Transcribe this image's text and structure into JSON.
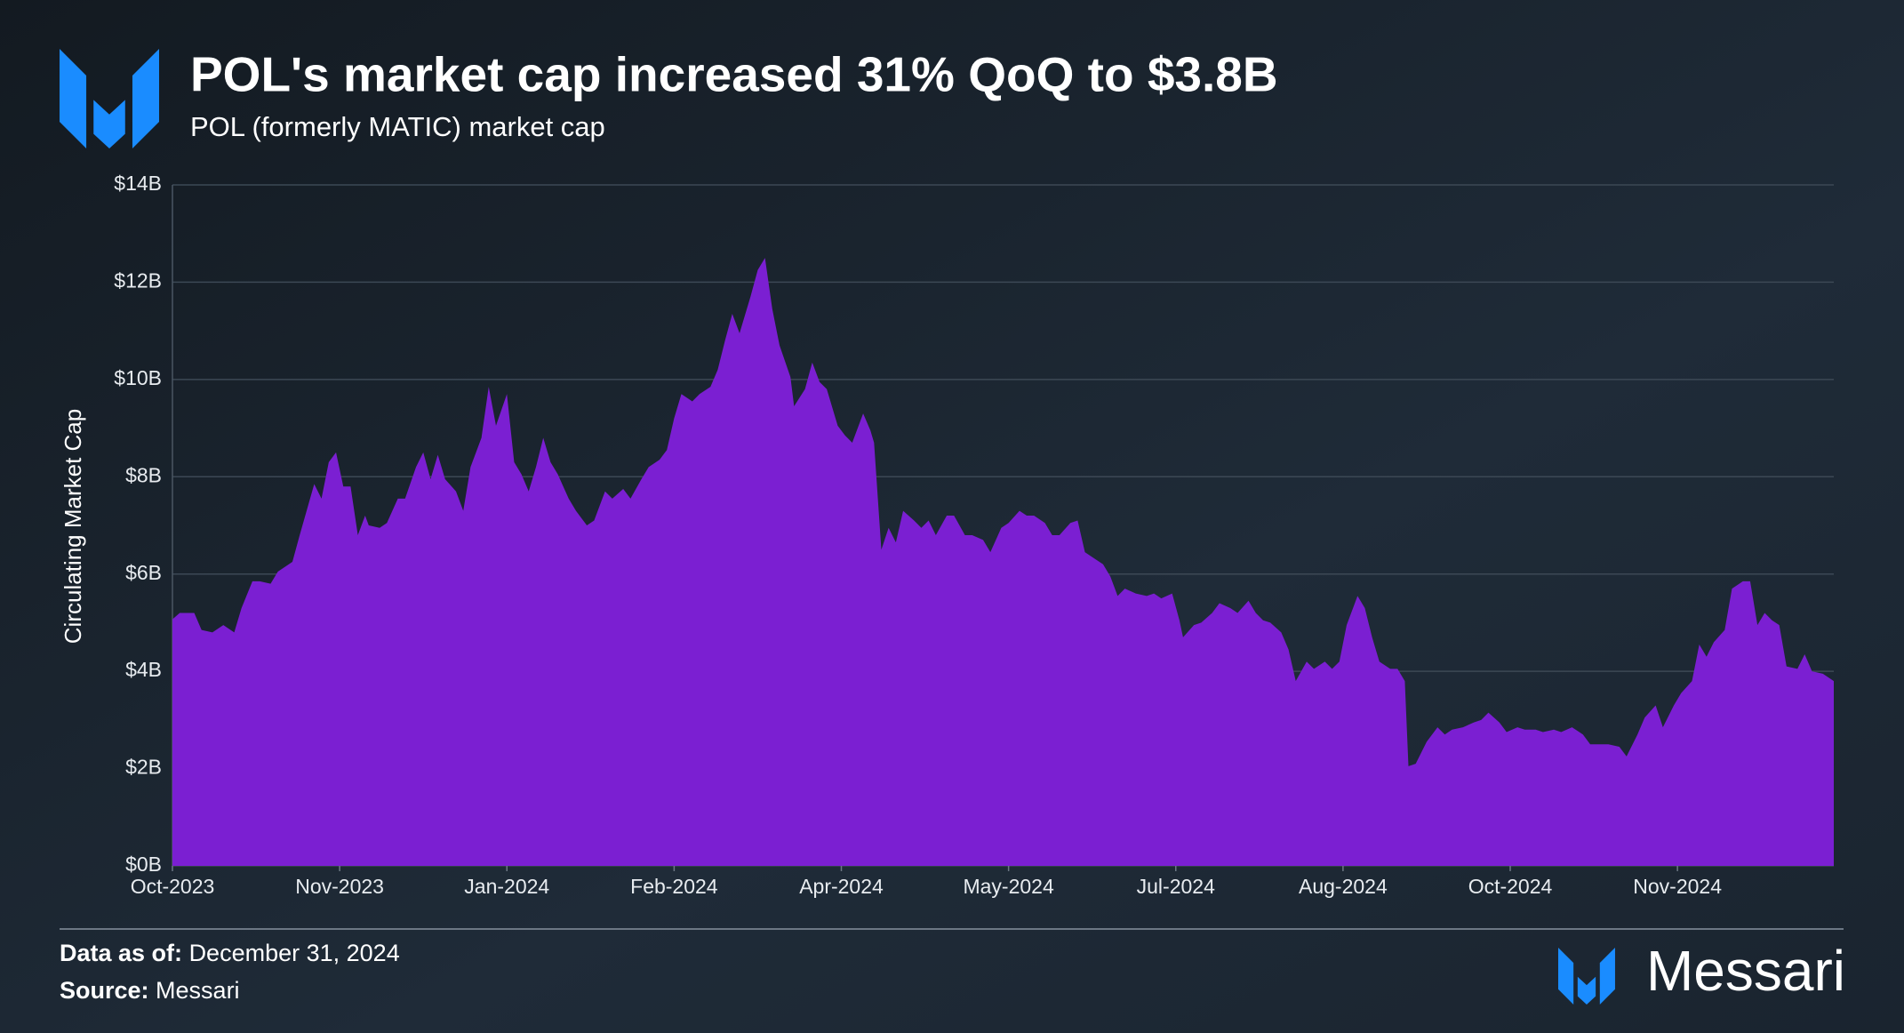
{
  "chart_data": {
    "type": "area",
    "title": "POL's market cap increased 31% QoQ to $3.8B",
    "subtitle": "POL (formerly MATIC) market cap",
    "y_label": "Circulating Market Cap",
    "color": "#7b1fd2",
    "grid": true,
    "xlim": [
      0,
      457
    ],
    "xticks": [
      {
        "value": 0,
        "label": "Oct-2023"
      },
      {
        "value": 46,
        "label": "Nov-2023"
      },
      {
        "value": 92,
        "label": "Jan-2024"
      },
      {
        "value": 138,
        "label": "Feb-2024"
      },
      {
        "value": 184,
        "label": "Apr-2024"
      },
      {
        "value": 230,
        "label": "May-2024"
      },
      {
        "value": 276,
        "label": "Jul-2024"
      },
      {
        "value": 322,
        "label": "Aug-2024"
      },
      {
        "value": 368,
        "label": "Oct-2024"
      },
      {
        "value": 414,
        "label": "Nov-2024"
      }
    ],
    "ylim": [
      0,
      14
    ],
    "yticks": [
      {
        "value": 0,
        "label": "$0B"
      },
      {
        "value": 2,
        "label": "$2B"
      },
      {
        "value": 4,
        "label": "$4B"
      },
      {
        "value": 6,
        "label": "$6B"
      },
      {
        "value": 8,
        "label": "$8B"
      },
      {
        "value": 10,
        "label": "$10B"
      },
      {
        "value": 12,
        "label": "$12B"
      },
      {
        "value": 14,
        "label": "$14B"
      }
    ],
    "x": [
      0,
      2,
      6,
      8,
      11,
      14,
      17,
      19,
      22,
      24,
      27,
      29,
      33,
      35,
      39,
      41,
      43,
      45,
      47,
      49,
      51,
      53,
      54,
      57,
      59,
      62,
      64,
      67,
      69,
      71,
      73,
      75,
      78,
      80,
      82,
      85,
      87,
      89,
      92,
      94,
      96,
      98,
      100,
      102,
      104,
      106,
      109,
      111,
      114,
      116,
      119,
      121,
      124,
      126,
      129,
      131,
      134,
      136,
      138,
      140,
      143,
      145,
      148,
      150,
      152,
      154,
      156,
      159,
      161,
      163,
      165,
      167,
      170,
      171,
      174,
      176,
      178,
      180,
      183,
      185,
      187,
      190,
      192,
      193,
      195,
      197,
      199,
      201,
      204,
      206,
      208,
      210,
      213,
      215,
      218,
      220,
      223,
      225,
      228,
      230,
      233,
      235,
      237,
      240,
      242,
      244,
      247,
      249,
      251,
      253,
      256,
      258,
      260,
      262,
      265,
      268,
      270,
      272,
      275,
      277,
      278,
      281,
      283,
      286,
      288,
      291,
      293,
      296,
      298,
      300,
      302,
      305,
      307,
      309,
      312,
      314,
      317,
      319,
      321,
      323,
      326,
      328,
      330,
      332,
      335,
      337,
      339,
      340,
      342,
      345,
      348,
      350,
      352,
      355,
      358,
      360,
      362,
      365,
      367,
      370,
      372,
      375,
      377,
      380,
      382,
      385,
      388,
      390,
      393,
      395,
      398,
      400,
      403,
      405,
      408,
      410,
      413,
      415,
      418,
      420,
      422,
      424,
      427,
      429,
      432,
      434,
      436,
      438,
      440,
      442,
      444,
      447,
      449,
      451,
      454,
      457
    ],
    "values": [
      5.07,
      5.2,
      5.2,
      4.85,
      4.8,
      4.95,
      4.8,
      5.3,
      5.85,
      5.85,
      5.8,
      6.05,
      6.25,
      6.8,
      7.85,
      7.55,
      8.3,
      8.5,
      7.8,
      7.8,
      6.8,
      7.2,
      7.0,
      6.95,
      7.05,
      7.55,
      7.55,
      8.2,
      8.5,
      7.95,
      8.45,
      7.95,
      7.7,
      7.3,
      8.2,
      8.8,
      9.85,
      9.05,
      9.7,
      8.3,
      8.05,
      7.7,
      8.2,
      8.8,
      8.3,
      8.05,
      7.55,
      7.3,
      7.0,
      7.1,
      7.7,
      7.55,
      7.75,
      7.55,
      7.95,
      8.2,
      8.35,
      8.55,
      9.2,
      9.7,
      9.55,
      9.7,
      9.85,
      10.2,
      10.8,
      11.35,
      10.95,
      11.7,
      12.25,
      12.5,
      11.45,
      10.7,
      10.05,
      9.45,
      9.8,
      10.35,
      9.95,
      9.8,
      9.05,
      8.85,
      8.7,
      9.3,
      8.95,
      8.7,
      6.5,
      6.95,
      6.65,
      7.3,
      7.1,
      6.95,
      7.1,
      6.8,
      7.2,
      7.2,
      6.8,
      6.8,
      6.7,
      6.45,
      6.95,
      7.05,
      7.3,
      7.2,
      7.2,
      7.05,
      6.8,
      6.8,
      7.05,
      7.1,
      6.45,
      6.35,
      6.2,
      5.95,
      5.55,
      5.7,
      5.6,
      5.55,
      5.6,
      5.5,
      5.6,
      5.05,
      4.7,
      4.95,
      5.0,
      5.2,
      5.4,
      5.3,
      5.2,
      5.45,
      5.2,
      5.05,
      5.0,
      4.8,
      4.45,
      3.8,
      4.2,
      4.05,
      4.2,
      4.05,
      4.2,
      4.95,
      5.55,
      5.3,
      4.7,
      4.2,
      4.05,
      4.05,
      3.8,
      2.05,
      2.1,
      2.55,
      2.85,
      2.7,
      2.8,
      2.85,
      2.95,
      3.0,
      3.15,
      2.95,
      2.75,
      2.85,
      2.8,
      2.8,
      2.75,
      2.8,
      2.75,
      2.85,
      2.7,
      2.5,
      2.5,
      2.5,
      2.45,
      2.25,
      2.7,
      3.05,
      3.3,
      2.85,
      3.3,
      3.55,
      3.8,
      4.55,
      4.3,
      4.6,
      4.85,
      5.7,
      5.85,
      5.85,
      4.95,
      5.2,
      5.05,
      4.95,
      4.1,
      4.05,
      4.35,
      4.0,
      3.95,
      3.8
    ]
  },
  "footer": {
    "data_as_of_label": "Data as of:",
    "data_as_of": "December 31, 2024",
    "source_label": "Source:",
    "source": "Messari",
    "brand": "Messari"
  }
}
